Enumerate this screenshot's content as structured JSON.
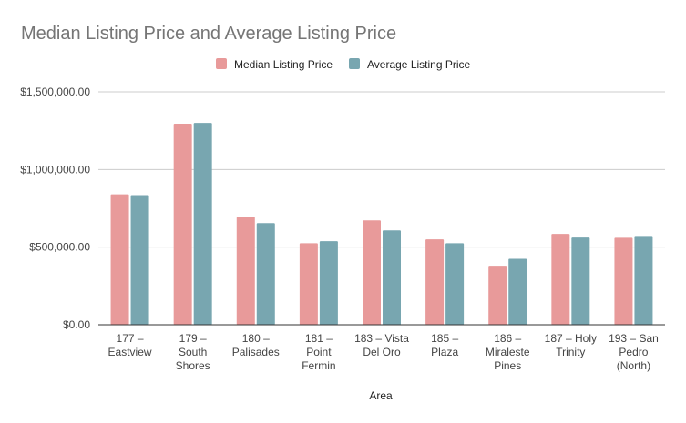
{
  "chart_data": {
    "type": "bar",
    "title": "Median Listing Price and Average Listing Price",
    "xlabel": "Area",
    "ylabel": "",
    "ylim": [
      0,
      1500000
    ],
    "yticks": [
      "$0.00",
      "$500,000.00",
      "$1,000,000.00",
      "$1,500,000.00"
    ],
    "grid": true,
    "legend_position": "top",
    "categories": [
      [
        "177 –",
        "Eastview"
      ],
      [
        "179 –",
        "South",
        "Shores"
      ],
      [
        "180 –",
        "Palisades"
      ],
      [
        "181 –",
        "Point",
        "Fermin"
      ],
      [
        "183 – Vista",
        "Del Oro"
      ],
      [
        "185 –",
        "Plaza"
      ],
      [
        "186 –",
        "Miraleste",
        "Pines"
      ],
      [
        "187 – Holy",
        "Trinity"
      ],
      [
        "193 – San",
        "Pedro",
        "(North)"
      ]
    ],
    "series": [
      {
        "name": "Median Listing Price",
        "color": "#e89a9a",
        "values": [
          840000,
          1295000,
          695000,
          525000,
          672000,
          550000,
          380000,
          585000,
          560000
        ]
      },
      {
        "name": "Average Listing Price",
        "color": "#78a6b0",
        "values": [
          835000,
          1300000,
          655000,
          538000,
          608000,
          525000,
          425000,
          562000,
          572000
        ]
      }
    ]
  }
}
